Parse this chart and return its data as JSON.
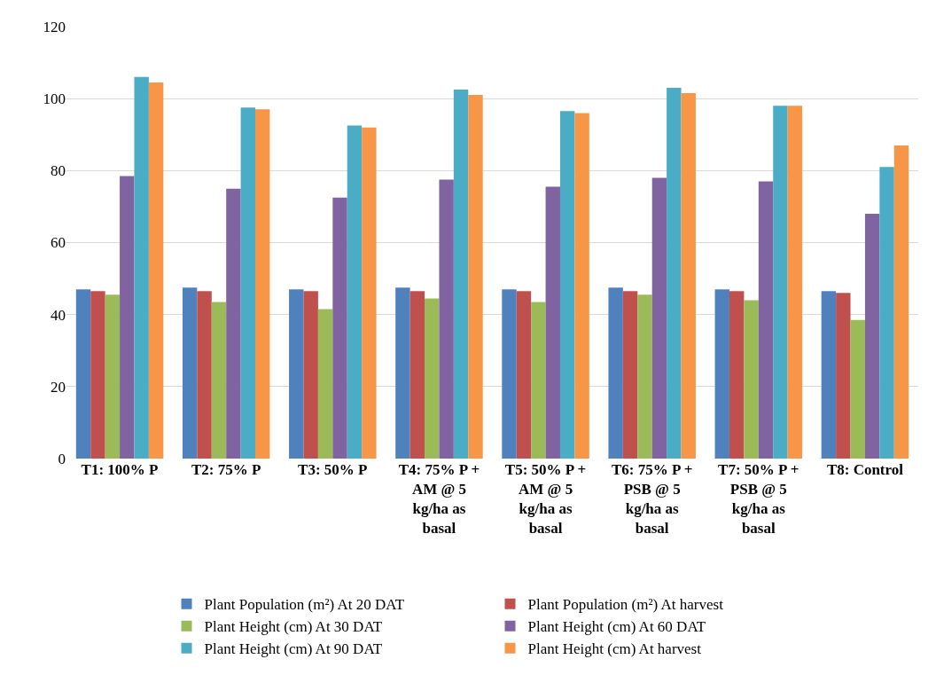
{
  "chart_data": {
    "type": "bar",
    "categories": [
      "T1: 100% P",
      "T2: 75% P",
      "T3: 50% P",
      "T4: 75% P + AM @ 5 kg/ha as basal",
      "T5: 50% P + AM @ 5 kg/ha as basal",
      "T6: 75% P + PSB @ 5 kg/ha as basal",
      "T7: 50% P + PSB @ 5 kg/ha as basal",
      "T8: Control"
    ],
    "series": [
      {
        "name": "Plant Population (m²) At 20 DAT",
        "color": "#4f81bd",
        "values": [
          47,
          47.5,
          47,
          47.5,
          47,
          47.5,
          47,
          46.5
        ]
      },
      {
        "name": "Plant Population (m²) At harvest",
        "color": "#c0504d",
        "values": [
          46.5,
          46.5,
          46.5,
          46.5,
          46.5,
          46.5,
          46.5,
          46
        ]
      },
      {
        "name": "Plant Height (cm) At 30 DAT",
        "color": "#9bbb59",
        "values": [
          45.5,
          43.5,
          41.5,
          44.5,
          43.5,
          45.5,
          44,
          38.5
        ]
      },
      {
        "name": "Plant Height (cm) At 60 DAT",
        "color": "#8064a2",
        "values": [
          78.5,
          75,
          72.5,
          77.5,
          75.5,
          78,
          77,
          68
        ]
      },
      {
        "name": "Plant Height (cm) At 90 DAT",
        "color": "#4bacc6",
        "values": [
          106,
          97.5,
          92.5,
          102.5,
          96.5,
          103,
          98,
          81
        ]
      },
      {
        "name": "Plant Height (cm) At harvest",
        "color": "#f79646",
        "values": [
          104.5,
          97,
          92,
          101,
          96,
          101.5,
          98,
          87
        ]
      }
    ],
    "ylim": [
      0,
      120
    ],
    "yticks": [
      0,
      20,
      40,
      60,
      80,
      100,
      120
    ],
    "grid": "y",
    "legend": "bottom"
  }
}
